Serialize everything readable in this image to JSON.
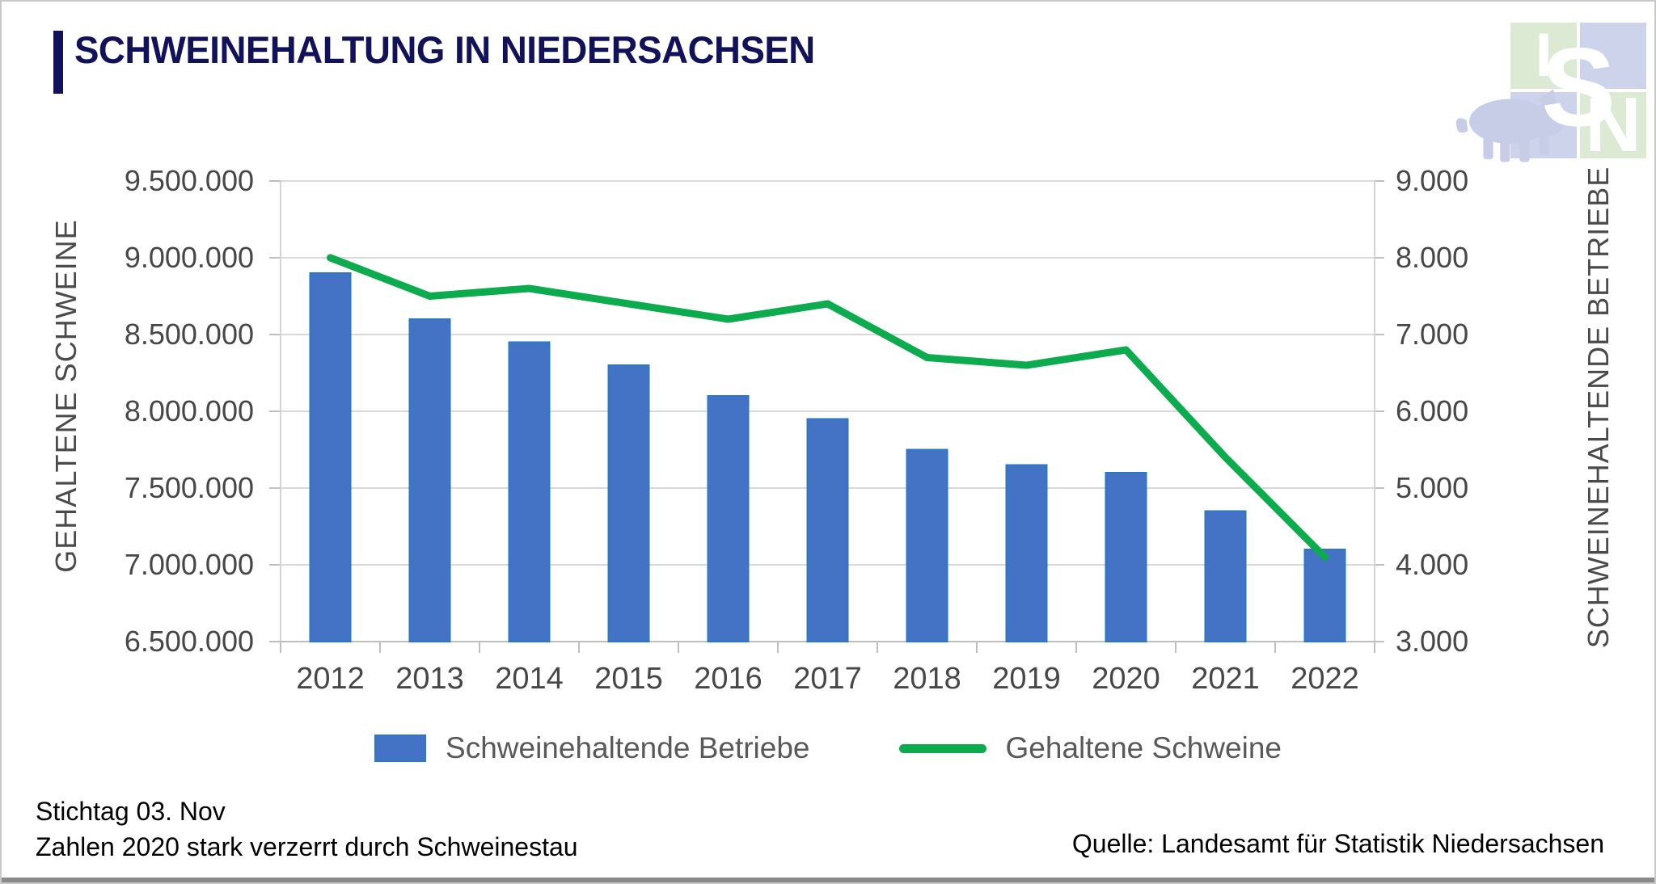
{
  "header": {
    "title": "SCHWEINEHALTUNG IN NIEDERSACHSEN"
  },
  "logo": {
    "letter_1": "I",
    "letter_2": "S",
    "letter_3": "N"
  },
  "chart_data": {
    "type": "combo",
    "categories": [
      "2012",
      "2013",
      "2014",
      "2015",
      "2016",
      "2017",
      "2018",
      "2019",
      "2020",
      "2021",
      "2022"
    ],
    "series": [
      {
        "name": "Schweinehaltende Betriebe",
        "type": "bar",
        "axis": "right",
        "color": "#4472c4",
        "border_color": "#2b78c5",
        "values": [
          7800,
          7200,
          6900,
          6600,
          6200,
          5900,
          5500,
          5300,
          5200,
          4700,
          4200
        ]
      },
      {
        "name": "Gehaltene Schweine",
        "type": "line",
        "axis": "left",
        "color": "#0cab4e",
        "values": [
          9000000,
          8750000,
          8800000,
          8700000,
          8600000,
          8700000,
          8350000,
          8300000,
          8400000,
          7700000,
          7050000
        ]
      }
    ],
    "left_axis": {
      "title": "GEHALTENE SCHWEINE",
      "min": 6500000,
      "max": 9500000,
      "step": 500000,
      "tick_labels": [
        "9.500.000",
        "9.000.000",
        "8.500.000",
        "8.000.000",
        "7.500.000",
        "7.000.000",
        "6.500.000"
      ]
    },
    "right_axis": {
      "title": "SCHWEINEHALTENDE BETRIEBE",
      "min": 3000,
      "max": 9000,
      "step": 1000,
      "tick_labels": [
        "9.000",
        "8.000",
        "7.000",
        "6.000",
        "5.000",
        "4.000",
        "3.000"
      ]
    },
    "grid": true,
    "legend_position": "bottom",
    "title": "SCHWEINEHALTUNG IN NIEDERSACHSEN"
  },
  "legend": {
    "items": [
      {
        "label": "Schweinehaltende Betriebe",
        "swatch": "bar",
        "color": "#4472c4"
      },
      {
        "label": "Gehaltene Schweine",
        "swatch": "line",
        "color": "#0cab4e"
      }
    ]
  },
  "footnotes": {
    "line1": "Stichtag 03. Nov",
    "line2": "Zahlen 2020 stark verzerrt durch Schweinestau"
  },
  "source": "Quelle: Landesamt für Statistik Niedersachsen",
  "colors": {
    "title": "#12125a",
    "grid": "#d9d9d9",
    "axis": "#bfbfbf",
    "tick_text": "#474747",
    "legend_text": "#595959"
  }
}
